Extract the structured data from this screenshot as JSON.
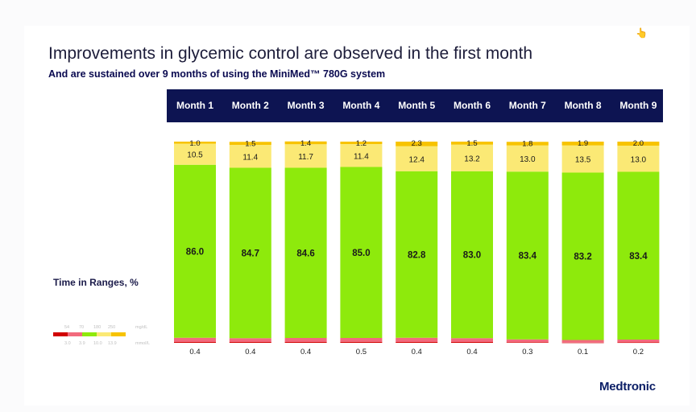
{
  "title": "Improvements in glycemic control are observed in the first month",
  "subtitle": "And are sustained over 9 months of using the MiniMed™ 780G system",
  "y_axis_label": "Time in Ranges, %",
  "brand": "Medtronic",
  "legend": {
    "mgdl_unit": "mg/dL",
    "mmol_unit": "mmol/L",
    "mgdl_values": [
      "54",
      "70",
      "180",
      "250"
    ],
    "mmol_values": [
      "3.0",
      "3.9",
      "10.0",
      "13.9"
    ],
    "swatch_colors": [
      "#d10000",
      "#f26a7d",
      "#8eea0c",
      "#fbe975",
      "#f7c300"
    ]
  },
  "chart_data": {
    "type": "bar",
    "stacked": true,
    "categories": [
      "Month 1",
      "Month 2",
      "Month 3",
      "Month 4",
      "Month 5",
      "Month 6",
      "Month 7",
      "Month 8",
      "Month 9"
    ],
    "series": [
      {
        "color": "#d10000",
        "values": [
          0.4,
          0.4,
          0.4,
          0.5,
          0.4,
          0.4,
          0.3,
          0.1,
          0.2
        ]
      },
      {
        "color": "#f26a7d",
        "values": [
          2.1,
          1.9,
          2.0,
          1.9,
          2.1,
          1.9,
          1.4,
          1.3,
          1.4
        ]
      },
      {
        "color": "#8eea0c",
        "values": [
          86.0,
          84.7,
          84.6,
          85.0,
          82.8,
          83.0,
          83.4,
          83.2,
          83.4
        ]
      },
      {
        "color": "#fbe975",
        "values": [
          10.5,
          11.4,
          11.7,
          11.4,
          12.4,
          13.2,
          13.0,
          13.5,
          13.0
        ]
      },
      {
        "color": "#f7c300",
        "values": [
          1.0,
          1.5,
          1.4,
          1.2,
          2.3,
          1.5,
          1.8,
          1.9,
          2.0
        ]
      }
    ],
    "ylim": [
      0,
      100
    ]
  }
}
